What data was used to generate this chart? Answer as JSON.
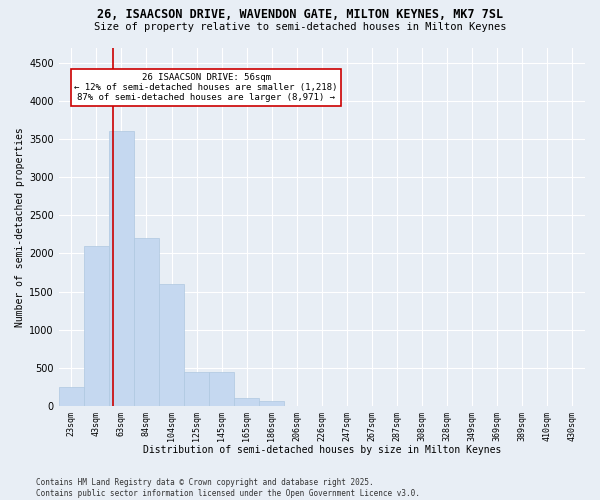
{
  "title_line1": "26, ISAACSON DRIVE, WAVENDON GATE, MILTON KEYNES, MK7 7SL",
  "title_line2": "Size of property relative to semi-detached houses in Milton Keynes",
  "xlabel": "Distribution of semi-detached houses by size in Milton Keynes",
  "ylabel": "Number of semi-detached properties",
  "categories": [
    "23sqm",
    "43sqm",
    "63sqm",
    "84sqm",
    "104sqm",
    "125sqm",
    "145sqm",
    "165sqm",
    "186sqm",
    "206sqm",
    "226sqm",
    "247sqm",
    "267sqm",
    "287sqm",
    "308sqm",
    "328sqm",
    "349sqm",
    "369sqm",
    "389sqm",
    "410sqm",
    "430sqm"
  ],
  "values": [
    250,
    2100,
    3600,
    2200,
    1600,
    450,
    450,
    110,
    60,
    0,
    0,
    0,
    0,
    0,
    0,
    0,
    0,
    0,
    0,
    0,
    0
  ],
  "bar_color": "#c5d8f0",
  "bar_edge_color": "#afc8e0",
  "vline_color": "#cc0000",
  "annotation_text": "26 ISAACSON DRIVE: 56sqm\n← 12% of semi-detached houses are smaller (1,218)\n87% of semi-detached houses are larger (8,971) →",
  "annotation_box_color": "#ffffff",
  "annotation_box_edge": "#cc0000",
  "ylim": [
    0,
    4700
  ],
  "yticks": [
    0,
    500,
    1000,
    1500,
    2000,
    2500,
    3000,
    3500,
    4000,
    4500
  ],
  "background_color": "#e8eef5",
  "grid_color": "#ffffff",
  "footnote": "Contains HM Land Registry data © Crown copyright and database right 2025.\nContains public sector information licensed under the Open Government Licence v3.0."
}
